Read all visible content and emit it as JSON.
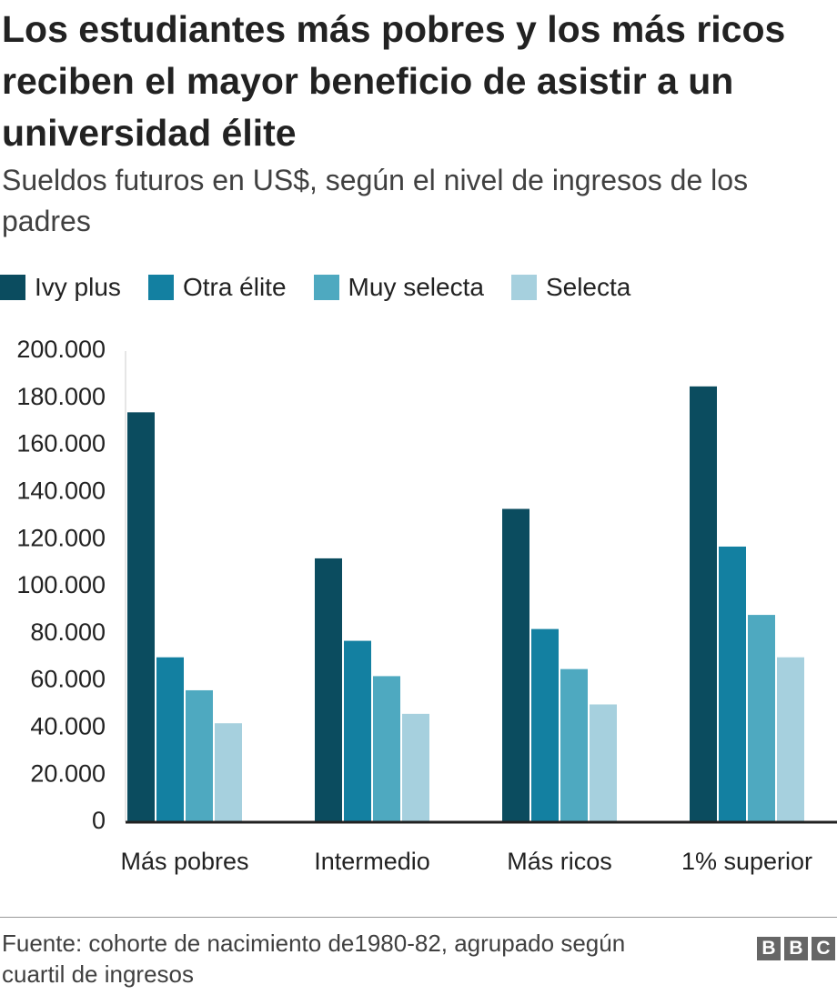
{
  "chart_data": {
    "type": "bar",
    "title": "Los estudiantes más pobres y los más ricos reciben el mayor beneficio de asistir a un universidad élite",
    "subtitle": "Sueldos futuros en US$, según el nivel de ingresos de los padres",
    "categories": [
      "Más pobres",
      "Intermedio",
      "Más ricos",
      "1% superior"
    ],
    "series": [
      {
        "name": "Ivy plus",
        "color": "#0b4c5f",
        "values": [
          174000,
          112000,
          133000,
          185000
        ]
      },
      {
        "name": "Otra élite",
        "color": "#1380a1",
        "values": [
          70000,
          77000,
          82000,
          117000
        ]
      },
      {
        "name": "Muy selecta",
        "color": "#4ea9c0",
        "values": [
          56000,
          62000,
          65000,
          88000
        ]
      },
      {
        "name": "Selecta",
        "color": "#a6d0de",
        "values": [
          42000,
          46000,
          50000,
          70000
        ]
      }
    ],
    "ylim": [
      0,
      200000
    ],
    "yticks": [
      0,
      {
        "value": 20000,
        "label": "20.000"
      },
      {
        "value": 40000,
        "label": "40.000"
      },
      {
        "value": 60000,
        "label": "60.000"
      },
      {
        "value": 80000,
        "label": "80.000"
      },
      {
        "value": 100000,
        "label": "100.000"
      },
      {
        "value": 120000,
        "label": "120.000"
      },
      {
        "value": 140000,
        "label": "140.000"
      },
      {
        "value": 160000,
        "label": "160.000"
      },
      {
        "value": 180000,
        "label": "180.000"
      },
      {
        "value": 200000,
        "label": "200.000"
      }
    ],
    "grid": false,
    "legend": "top",
    "source": "Fuente: cohorte de nacimiento de1980-82, agrupado según cuartil de ingresos",
    "logo": [
      "B",
      "B",
      "C"
    ]
  }
}
